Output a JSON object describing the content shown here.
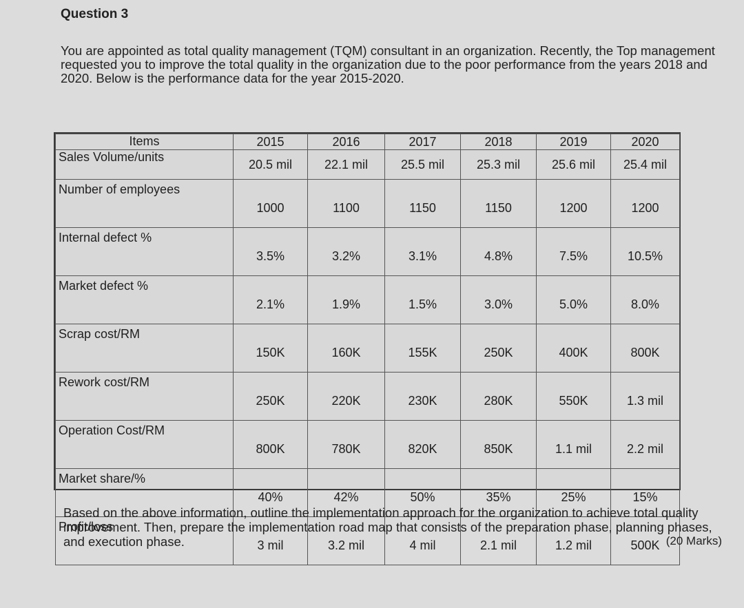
{
  "question": {
    "heading": "Question 3"
  },
  "intro": {
    "text": "You are appointed as total quality management (TQM) consultant in an organization. Recently, the Top management requested you to improve the total quality in the organization due to the poor performance from the years 2018 and 2020. Below is the performance data for the year 2015-2020."
  },
  "table": {
    "header_label": "Items",
    "years": [
      "2015",
      "2016",
      "2017",
      "2018",
      "2019",
      "2020"
    ],
    "rows": [
      {
        "label": "Sales Volume/units",
        "values": [
          "20.5 mil",
          "22.1 mil",
          "25.5 mil",
          "25.3 mil",
          "25.6 mil",
          "25.4 mil"
        ]
      },
      {
        "label": "Number of employees",
        "values": [
          "1000",
          "1100",
          "1150",
          "1150",
          "1200",
          "1200"
        ]
      },
      {
        "label": "Internal defect %",
        "values": [
          "3.5%",
          "3.2%",
          "3.1%",
          "4.8%",
          "7.5%",
          "10.5%"
        ]
      },
      {
        "label": "Market defect %",
        "values": [
          "2.1%",
          "1.9%",
          "1.5%",
          "3.0%",
          "5.0%",
          "8.0%"
        ]
      },
      {
        "label": "Scrap cost/RM",
        "values": [
          "150K",
          "160K",
          "155K",
          "250K",
          "400K",
          "800K"
        ]
      },
      {
        "label": "Rework cost/RM",
        "values": [
          "250K",
          "220K",
          "230K",
          "280K",
          "550K",
          "1.3 mil"
        ]
      },
      {
        "label": "Operation Cost/RM",
        "values": [
          "800K",
          "780K",
          "820K",
          "850K",
          "1.1 mil",
          "2.2 mil"
        ]
      },
      {
        "label": "Market share/%",
        "values": [
          "40%",
          "42%",
          "50%",
          "35%",
          "25%",
          "15%"
        ]
      },
      {
        "label": "Profit/loss",
        "values": [
          "3 mil",
          "3.2 mil",
          "4 mil",
          "2.1 mil",
          "1.2 mil",
          "500K"
        ]
      }
    ]
  },
  "footer": {
    "text": "Based on the above information, outline the implementation approach for the organization to achieve total quality improvement. Then, prepare the implementation road map that consists of the preparation phase, planning phases, and execution phase.",
    "marks": "(20 Marks)"
  }
}
